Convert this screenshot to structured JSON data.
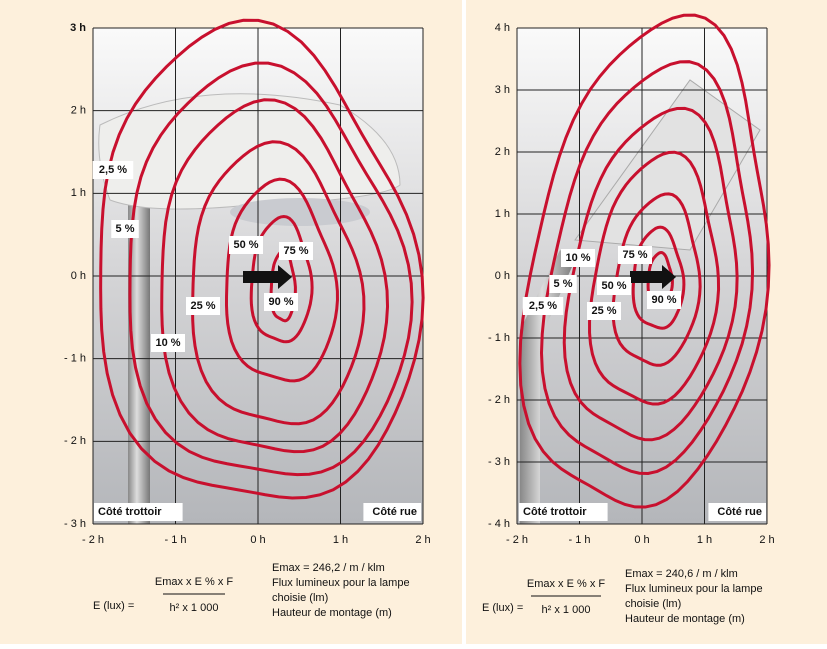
{
  "panels": [
    {
      "y_axis_labels": [
        "3 h",
        "2 h",
        "1 h",
        "0 h",
        "- 1 h",
        "- 2 h",
        "- 3 h"
      ],
      "x_axis_labels": [
        "- 2 h",
        "- 1 h",
        "0 h",
        "1 h",
        "2 h"
      ],
      "contour_labels": [
        "2,5 %",
        "5 %",
        "50 %",
        "75 %",
        "90 %",
        "25 %",
        "10 %"
      ],
      "side_labels": [
        "Côté trottoir",
        "Côté rue"
      ],
      "formula": {
        "lhs": "E (lux) =",
        "numerator": "Emax x E % x F",
        "denominator": "h² x 1 000"
      },
      "notes": [
        "Emax = 246,2 / m / klm",
        "Flux lumineux pour la lampe",
        "choisie (lm)",
        "Hauteur de montage (m)"
      ]
    },
    {
      "y_axis_labels": [
        "4 h",
        "3 h",
        "2 h",
        "1 h",
        "0 h",
        "- 1 h",
        "- 2 h",
        "- 3 h",
        "- 4 h"
      ],
      "x_axis_labels": [
        "- 2 h",
        "- 1 h",
        "0 h",
        "1 h",
        "2 h"
      ],
      "contour_labels": [
        "10 %",
        "75 %",
        "5 %",
        "50 %",
        "90 %",
        "2,5 %",
        "25 %"
      ],
      "side_labels": [
        "Côté trottoir",
        "Côté rue"
      ],
      "formula": {
        "lhs": "E (lux) =",
        "numerator": "Emax x E % x F",
        "denominator": "h² x 1 000"
      },
      "notes": [
        "Emax = 240,6 / m / klm",
        "Flux lumineux pour la lampe",
        "choisie (lm)",
        "Hauteur de montage (m)"
      ]
    }
  ]
}
